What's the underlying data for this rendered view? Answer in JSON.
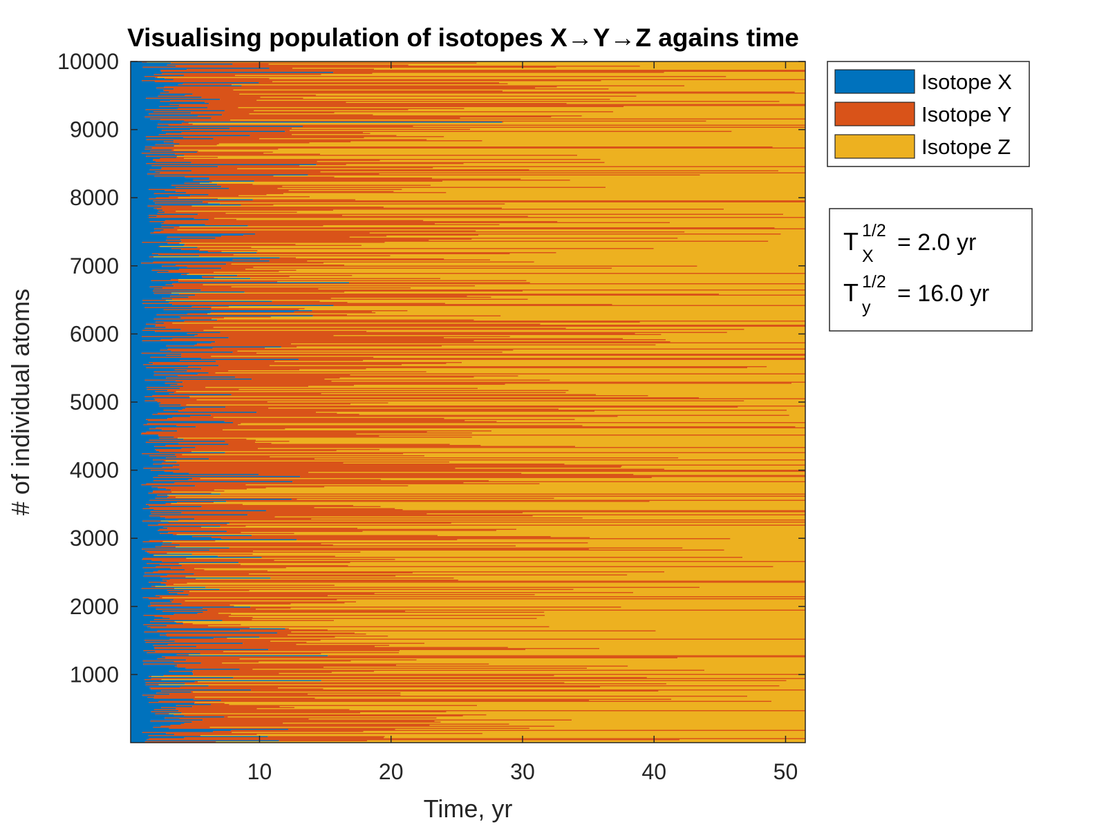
{
  "chart_data": {
    "type": "heatmap",
    "title": "Visualising population of isotopes X→Y→Z agains time",
    "xlabel": "Time, yr",
    "ylabel": "# of individual atoms",
    "xlim": [
      0.2,
      51.5
    ],
    "ylim": [
      0,
      10000
    ],
    "x_ticks": [
      10,
      20,
      30,
      40,
      50
    ],
    "y_ticks": [
      1000,
      2000,
      3000,
      4000,
      5000,
      6000,
      7000,
      8000,
      9000,
      10000
    ],
    "grid": false,
    "legend_position": "right-top",
    "series": [
      {
        "name": "Isotope X",
        "color": "#0072BD",
        "half_life_yr": 2.0
      },
      {
        "name": "Isotope Y",
        "color": "#D95319",
        "half_life_yr": 16.0
      },
      {
        "name": "Isotope Z",
        "color": "#EDB120"
      }
    ],
    "annotation": {
      "lines": [
        {
          "symbol": "T",
          "sup": "1/2",
          "sub": "X",
          "text": "= 2.0 yr"
        },
        {
          "symbol": "T",
          "sup": "1/2",
          "sub": "y",
          "text": "= 16.0 yr"
        }
      ]
    }
  }
}
